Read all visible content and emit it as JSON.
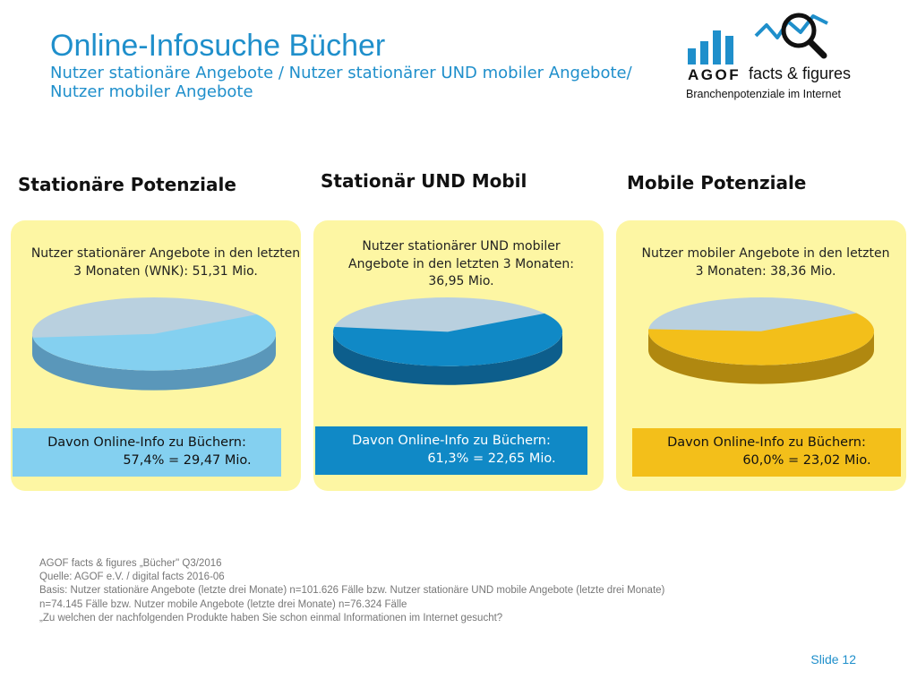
{
  "header": {
    "title": "Online-Infosuche Bücher",
    "subtitle_line1": "Nutzer stationäre Angebote / Nutzer stationärer UND mobiler Angebote/",
    "subtitle_line2": "Nutzer mobiler Angebote"
  },
  "logo": {
    "brand": "AGOF",
    "product": "facts & figures",
    "tagline": "Branchenpotenziale im Internet",
    "icon": "bar-chart-magnifier-icon"
  },
  "colors": {
    "title_blue": "#1f8fcb",
    "panel1_bg": "#fdf6a3",
    "panel2_bg": "#fdf6a3",
    "panel3_bg": "#fdf6a3",
    "pie1_fill": "#84d0f0",
    "pie1_side": "#5a97ba",
    "pie2_fill": "#1089c6",
    "pie2_side": "#0d5e8c",
    "pie3_fill": "#f3bf1a",
    "pie3_side": "#b08810",
    "rest_fill": "#b9d0df"
  },
  "chart_data": [
    {
      "type": "pie",
      "title": "Stationäre Potenziale",
      "description": "Nutzer stationärer Angebote in den letzten 3 Monaten (WNK): 51,31 Mio.",
      "values": [
        57.4,
        42.6
      ],
      "result_line1": "Davon Online-Info zu Büchern:",
      "result_line2": "57,4% = 29,47 Mio."
    },
    {
      "type": "pie",
      "title": "Stationär UND Mobil",
      "description": "Nutzer stationärer UND mobiler Angebote in den letzten 3 Monaten: 36,95 Mio.",
      "values": [
        61.3,
        38.7
      ],
      "result_line1": "Davon Online-Info zu Büchern:",
      "result_line2": "61,3% = 22,65 Mio."
    },
    {
      "type": "pie",
      "title": "Mobile Potenziale",
      "description": "Nutzer mobiler Angebote in den letzten 3 Monaten: 38,36 Mio.",
      "values": [
        60.0,
        40.0
      ],
      "result_line1": "Davon Online-Info zu Büchern:",
      "result_line2": "60,0% = 23,02 Mio."
    }
  ],
  "footer": {
    "line1": "AGOF facts & figures „Bücher\" Q3/2016",
    "line2": "Quelle: AGOF e.V. / digital facts 2016-06",
    "line3": "Basis: Nutzer stationäre Angebote (letzte drei Monate) n=101.626 Fälle bzw. Nutzer stationäre UND mobile Angebote (letzte drei Monate)",
    "line4": "n=74.145 Fälle bzw. Nutzer mobile Angebote (letzte drei Monate) n=76.324 Fälle",
    "line5": "„Zu welchen der nachfolgenden Produkte haben Sie schon einmal Informationen im Internet gesucht?"
  },
  "slide": {
    "label": "Slide 12"
  }
}
